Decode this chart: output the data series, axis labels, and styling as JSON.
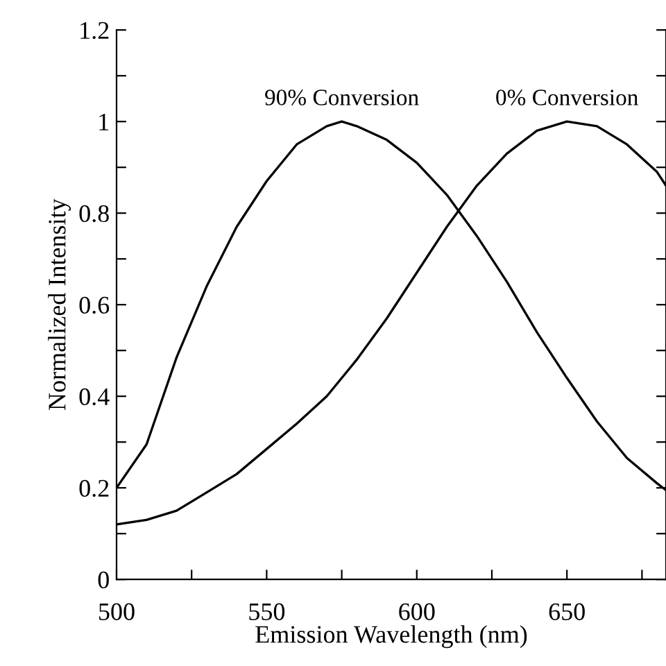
{
  "chart_data": {
    "type": "line",
    "xlabel": "Emission Wavelength (nm)",
    "ylabel": "Normalized Intensity",
    "xlim": [
      500,
      683
    ],
    "ylim": [
      0,
      1.2
    ],
    "xticks": [
      500,
      {
        "value": 525,
        "label": null
      },
      550,
      {
        "value": 575,
        "label": null
      },
      600,
      {
        "value": 625,
        "label": null
      },
      650,
      {
        "value": 675,
        "label": null
      }
    ],
    "yticks": [
      0,
      {
        "value": 0.1,
        "label": null
      },
      0.2,
      {
        "value": 0.3,
        "label": null
      },
      0.4,
      {
        "value": 0.5,
        "label": null
      },
      0.6,
      {
        "value": 0.7,
        "label": null
      },
      0.8,
      {
        "value": 0.9,
        "label": null
      },
      1,
      {
        "value": 1.1,
        "label": null
      },
      1.2
    ],
    "annotations": [
      {
        "text": "90% Conversion",
        "x": 575,
        "y": 1.0
      },
      {
        "text": "0% Conversion",
        "x": 650,
        "y": 1.0
      }
    ],
    "grid": false,
    "marker": "none",
    "line_style": "solid",
    "series": [
      {
        "color": "#000000",
        "x": [
          500,
          510,
          520,
          530,
          540,
          550,
          560,
          570,
          575,
          580,
          590,
          600,
          610,
          620,
          630,
          640,
          650,
          660,
          670,
          680,
          683
        ],
        "values": [
          0.2,
          0.295,
          0.485,
          0.64,
          0.77,
          0.87,
          0.95,
          0.99,
          1.0,
          0.99,
          0.96,
          0.91,
          0.84,
          0.75,
          0.65,
          0.54,
          0.44,
          0.345,
          0.265,
          0.21,
          0.195
        ]
      },
      {
        "color": "#000000",
        "x": [
          500,
          510,
          520,
          530,
          540,
          550,
          560,
          570,
          580,
          590,
          600,
          610,
          620,
          630,
          640,
          650,
          660,
          670,
          680,
          683
        ],
        "values": [
          0.12,
          0.13,
          0.15,
          0.19,
          0.23,
          0.285,
          0.34,
          0.4,
          0.48,
          0.57,
          0.67,
          0.77,
          0.86,
          0.93,
          0.98,
          1.0,
          0.99,
          0.95,
          0.89,
          0.86
        ]
      }
    ]
  }
}
